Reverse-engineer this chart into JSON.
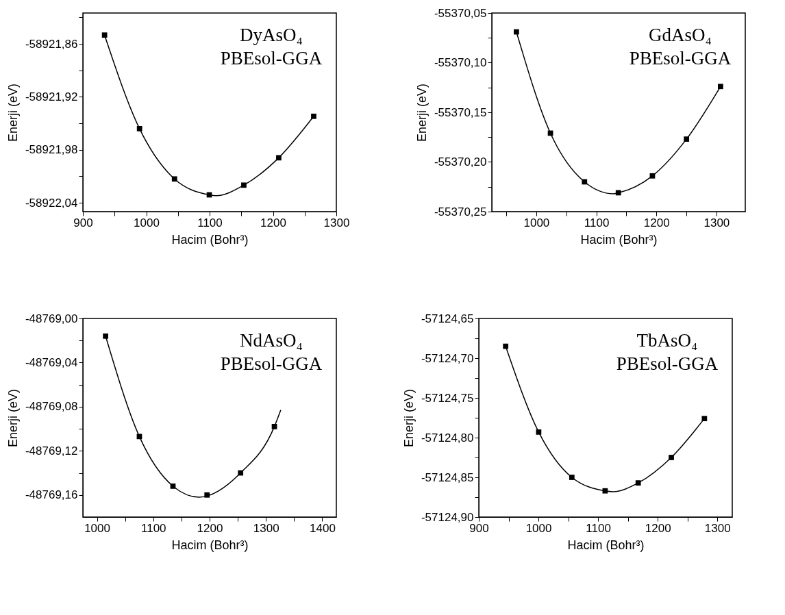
{
  "chart_data": [
    {
      "type": "scatter",
      "xlabel": "Hacim (Bohr³)",
      "ylabel": "Enerji (eV)",
      "annotations": [
        "DyAsO₄",
        "PBEsol-GGA"
      ],
      "grid": false,
      "xlim": [
        900,
        1300
      ],
      "xticks": [
        900,
        {
          "value": 950,
          "label": null
        },
        1000,
        {
          "value": 1050,
          "label": null
        },
        1100,
        {
          "value": 1150,
          "label": null
        },
        1200,
        {
          "value": 1250,
          "label": null
        },
        1300
      ],
      "ylim": [
        -58922.05,
        -58921.825
      ],
      "yticks": [
        {
          "value": -58921.83,
          "label": null
        },
        {
          "value": -58921.86,
          "label": "-58921,86"
        },
        {
          "value": -58921.89,
          "label": null
        },
        {
          "value": -58921.92,
          "label": "-58921,92"
        },
        {
          "value": -58921.95,
          "label": null
        },
        {
          "value": -58921.98,
          "label": "-58921,98"
        },
        {
          "value": -58922.01,
          "label": null
        },
        {
          "value": -58922.04,
          "label": "-58922,04"
        }
      ],
      "series": [
        {
          "marker": "square",
          "color": "#000000",
          "x": [
            934.2,
            989.4,
            1044.6,
            1099.5,
            1154.0,
            1209.1,
            1264.3
          ],
          "values": [
            -58921.85,
            -58921.956,
            -58922.013,
            -58922.031,
            -58922.02,
            -58921.989,
            -58921.942
          ]
        },
        {
          "type": "line",
          "color": "#000000",
          "x": [
            934.2,
            989.4,
            1044.6,
            1099.5,
            1110,
            1154.0,
            1209.1,
            1264.3
          ],
          "values": [
            -58921.85,
            -58921.956,
            -58922.013,
            -58922.031,
            -58922.032,
            -58922.02,
            -58921.989,
            -58921.942
          ]
        }
      ]
    },
    {
      "type": "scatter",
      "xlabel": "Hacim (Bohr³)",
      "ylabel": "Enerji (eV)",
      "annotations": [
        "GdAsO₄",
        "PBEsol-GGA"
      ],
      "grid": false,
      "xlim": [
        926,
        1348
      ],
      "xticks": [
        {
          "value": 950,
          "label": null
        },
        1000,
        {
          "value": 1050,
          "label": null
        },
        1100,
        {
          "value": 1150,
          "label": null
        },
        1200,
        {
          "value": 1250,
          "label": null
        },
        1300
      ],
      "ylim": [
        -55370.25,
        -55370.05
      ],
      "yticks": [
        {
          "value": -55370.05,
          "label": "-55370,05"
        },
        {
          "value": -55370.075,
          "label": null
        },
        {
          "value": -55370.1,
          "label": "-55370,10"
        },
        {
          "value": -55370.125,
          "label": null
        },
        {
          "value": -55370.15,
          "label": "-55370,15"
        },
        {
          "value": -55370.175,
          "label": null
        },
        {
          "value": -55370.2,
          "label": "-55370,20"
        },
        {
          "value": -55370.225,
          "label": null
        },
        {
          "value": -55370.25,
          "label": "-55370,25"
        }
      ],
      "series": [
        {
          "marker": "square",
          "color": "#000000",
          "x": [
            966.9,
            1023.6,
            1080.3,
            1136.7,
            1193.4,
            1250.1,
            1306.8
          ],
          "values": [
            -55370.069,
            -55370.171,
            -55370.22,
            -55370.231,
            -55370.214,
            -55370.177,
            -55370.124
          ]
        },
        {
          "type": "line",
          "color": "#000000",
          "x": [
            966.9,
            1023.6,
            1080.3,
            1128,
            1136.7,
            1193.4,
            1250.1,
            1306.8
          ],
          "values": [
            -55370.069,
            -55370.171,
            -55370.22,
            -55370.232,
            -55370.231,
            -55370.214,
            -55370.177,
            -55370.124
          ]
        }
      ]
    },
    {
      "type": "scatter",
      "xlabel": "Hacim (Bohr³)",
      "ylabel": "Enerji (eV)",
      "annotations": [
        "NdAsO₄",
        "PBEsol-GGA"
      ],
      "grid": false,
      "xlim": [
        975,
        1425
      ],
      "xticks": [
        1000,
        {
          "value": 1050,
          "label": null
        },
        1100,
        {
          "value": 1150,
          "label": null
        },
        1200,
        {
          "value": 1250,
          "label": null
        },
        1300,
        {
          "value": 1350,
          "label": null
        },
        1400
      ],
      "ylim": [
        -48769.18,
        -48769.0
      ],
      "yticks": [
        {
          "value": -48769.0,
          "label": "-48769,00"
        },
        {
          "value": -48769.02,
          "label": null
        },
        {
          "value": -48769.04,
          "label": "-48769,04"
        },
        {
          "value": -48769.06,
          "label": null
        },
        {
          "value": -48769.08,
          "label": "-48769,08"
        },
        {
          "value": -48769.1,
          "label": null
        },
        {
          "value": -48769.12,
          "label": "-48769,12"
        },
        {
          "value": -48769.14,
          "label": null
        },
        {
          "value": -48769.16,
          "label": "-48769,16"
        }
      ],
      "series": [
        {
          "marker": "square",
          "color": "#000000",
          "x": [
            1015.3,
            1075.3,
            1134.9,
            1195.4,
            1255.0,
            1315.0
          ],
          "values": [
            -48769.016,
            -48769.107,
            -48769.152,
            -48769.16,
            -48769.14,
            -48769.098
          ]
        },
        {
          "type": "line",
          "color": "#000000",
          "x": [
            1015.3,
            1075.3,
            1134.9,
            1181.3,
            1255.0,
            1315.0,
            1326.3
          ],
          "values": [
            -48769.016,
            -48769.107,
            -48769.152,
            -48769.162,
            -48769.14,
            -48769.098,
            -48769.083
          ]
        }
      ]
    },
    {
      "type": "scatter",
      "xlabel": "Hacim (Bohr³)",
      "ylabel": "Enerji (eV)",
      "annotations": [
        "TbAsO₄",
        "PBEsol-GGA"
      ],
      "grid": false,
      "xlim": [
        900,
        1325
      ],
      "xticks": [
        900,
        {
          "value": 950,
          "label": null
        },
        1000,
        {
          "value": 1050,
          "label": null
        },
        1100,
        {
          "value": 1150,
          "label": null
        },
        1200,
        {
          "value": 1250,
          "label": null
        },
        1300
      ],
      "ylim": [
        -57124.9,
        -57124.65
      ],
      "yticks": [
        {
          "value": -57124.65,
          "label": "-57124,65"
        },
        {
          "value": -57124.675,
          "label": null
        },
        {
          "value": -57124.7,
          "label": "-57124,70"
        },
        {
          "value": -57124.725,
          "label": null
        },
        {
          "value": -57124.75,
          "label": "-57124,75"
        },
        {
          "value": -57124.775,
          "label": null
        },
        {
          "value": -57124.8,
          "label": "-57124,80"
        },
        {
          "value": -57124.825,
          "label": null
        },
        {
          "value": -57124.85,
          "label": "-57124,85"
        },
        {
          "value": -57124.875,
          "label": null
        },
        {
          "value": -57124.9,
          "label": "-57124,90"
        }
      ],
      "series": [
        {
          "marker": "square",
          "color": "#000000",
          "x": [
            945.0,
            1000.4,
            1056.0,
            1111.8,
            1167.3,
            1222.8,
            1278.3
          ],
          "values": [
            -57124.685,
            -57124.793,
            -57124.85,
            -57124.867,
            -57124.857,
            -57124.825,
            -57124.776
          ]
        },
        {
          "type": "line",
          "color": "#000000",
          "x": [
            945.0,
            1000.4,
            1056.0,
            1111.8,
            1125,
            1167.3,
            1222.8,
            1278.3
          ],
          "values": [
            -57124.685,
            -57124.793,
            -57124.85,
            -57124.867,
            -57124.868,
            -57124.857,
            -57124.825,
            -57124.776
          ]
        }
      ]
    }
  ]
}
